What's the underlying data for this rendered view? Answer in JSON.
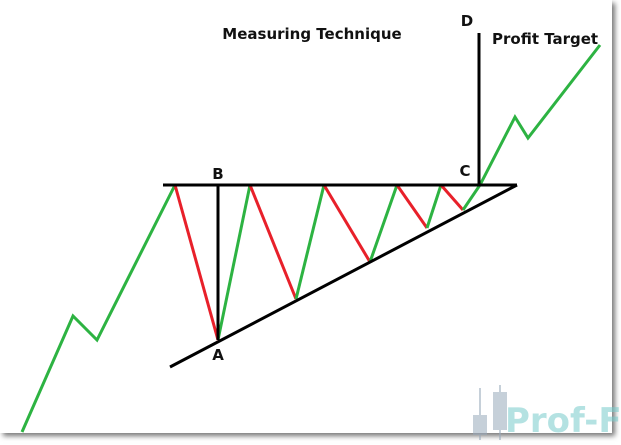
{
  "title": "Measuring Technique",
  "profit_label": "Profit Target",
  "points": {
    "a": "A",
    "b": "B",
    "c": "C",
    "d": "D"
  },
  "watermark": "Prof-FX",
  "colors": {
    "up": "#2db342",
    "down": "#e8202a",
    "line": "#000000",
    "watermark": "#9fd8d8"
  }
}
